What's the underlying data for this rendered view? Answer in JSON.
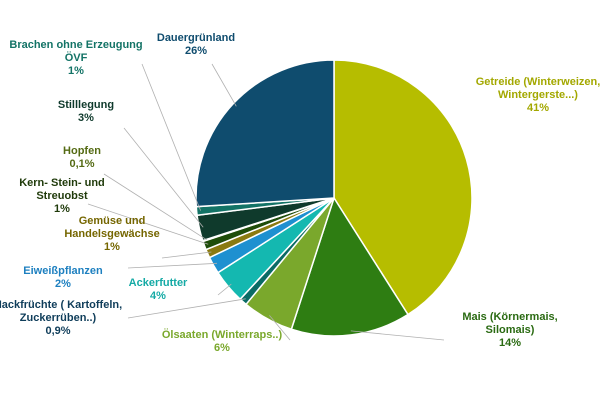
{
  "chart_data": {
    "type": "pie",
    "title": "",
    "slices": [
      {
        "name": "Getreide (Winterweizen, Wintergerste...)",
        "name_lines": [
          "Getreide (Winterweizen,",
          "Wintergerste...)"
        ],
        "label": "41%",
        "value": 41,
        "color": "#b6bd00"
      },
      {
        "name": "Mais (Körnermais, Silomais)",
        "name_lines": [
          "Mais (Körnermais,",
          "Silomais)"
        ],
        "label": "14%",
        "value": 14,
        "color": "#2e7d12"
      },
      {
        "name": "Ölsaaten (Winterraps..)",
        "name_lines": [
          "Ölsaaten (Winterraps..)"
        ],
        "label": "6%",
        "value": 6,
        "color": "#7aa82c"
      },
      {
        "name": "Hackfrüchte ( Kartoffeln, Zuckerrüben..)",
        "name_lines": [
          "Hackfrüchte ( Kartoffeln,",
          "Zuckerrüben..)"
        ],
        "label": "0,9%",
        "value": 0.9,
        "color": "#0a6b65"
      },
      {
        "name": "Ackerfutter",
        "name_lines": [
          "Ackerfutter"
        ],
        "label": "4%",
        "value": 4,
        "color": "#14b8b0"
      },
      {
        "name": "Eiweißpflanzen",
        "name_lines": [
          "Eiweißpflanzen"
        ],
        "label": "2%",
        "value": 2,
        "color": "#1e90d0"
      },
      {
        "name": "Gemüse und Handelsgewächse",
        "name_lines": [
          "Gemüse und",
          "Handelsgewächse"
        ],
        "label": "1%",
        "value": 1,
        "color": "#8a7a10"
      },
      {
        "name": "Kern- Stein- und Streuobst",
        "name_lines": [
          "Kern- Stein- und",
          "Streuobst"
        ],
        "label": "1%",
        "value": 1,
        "color": "#1f4d0a"
      },
      {
        "name": "Hopfen",
        "name_lines": [
          "Hopfen"
        ],
        "label": "0,1%",
        "value": 0.1,
        "color": "#5a8a18"
      },
      {
        "name": "Stilllegung",
        "name_lines": [
          "Stilllegung"
        ],
        "label": "3%",
        "value": 3,
        "color": "#0f3a2c"
      },
      {
        "name": "Brachen ohne Erzeugung ÖVF",
        "name_lines": [
          "Brachen ohne Erzeugung",
          "ÖVF"
        ],
        "label": "1%",
        "value": 1,
        "color": "#137366"
      },
      {
        "name": "Dauergrünland",
        "name_lines": [
          "Dauergrünland"
        ],
        "label": "26%",
        "value": 26,
        "color": "#0f4c6e"
      }
    ],
    "label_colors": {
      "Getreide": "#a3a800",
      "Mais": "#2a6a12",
      "Ölsaaten": "#7aa82c",
      "Hackfrüchte": "#0f3d5a",
      "Ackerfutter": "#14aaa5",
      "Eiweißpflanzen": "#1e80c0",
      "Gemüse": "#756600",
      "Kern": "#1f3a0a",
      "Hopfen": "#556b14",
      "Stilllegung": "#0f3a2c",
      "Brachen": "#137366",
      "Dauergrünland": "#0f4c6e"
    },
    "legend": "none"
  }
}
